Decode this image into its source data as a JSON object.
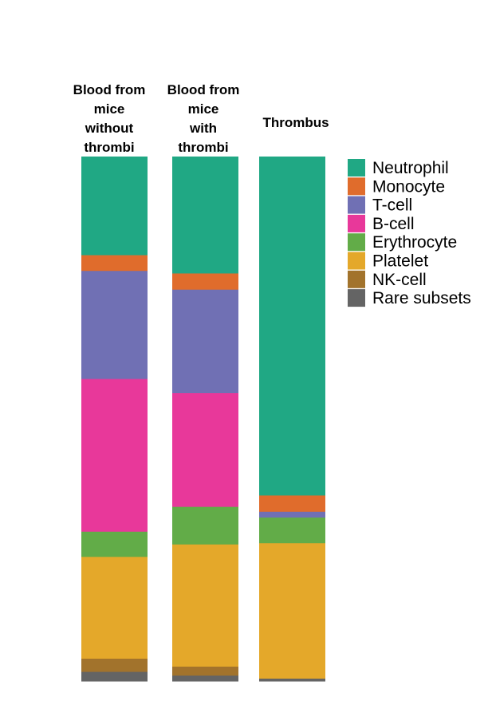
{
  "chart_data": {
    "type": "bar",
    "stacked": true,
    "orientation": "vertical",
    "normalized": true,
    "categories": [
      [
        "Blood from",
        "mice",
        "without",
        "thrombi"
      ],
      [
        "Blood from",
        "mice",
        "with",
        "thrombi"
      ],
      [
        "Thrombus"
      ]
    ],
    "series": [
      {
        "name": "Neutrophil",
        "color": "#20a884",
        "values": [
          0.188,
          0.224,
          0.646
        ]
      },
      {
        "name": "Monocyte",
        "color": "#e06c2c",
        "values": [
          0.03,
          0.031,
          0.031
        ]
      },
      {
        "name": "T-cell",
        "color": "#7070b4",
        "values": [
          0.206,
          0.198,
          0.011
        ]
      },
      {
        "name": "B-cell",
        "color": "#e8389a",
        "values": [
          0.291,
          0.218,
          0.0
        ]
      },
      {
        "name": "Erythrocyte",
        "color": "#62ac48",
        "values": [
          0.048,
          0.072,
          0.049
        ]
      },
      {
        "name": "Platelet",
        "color": "#e4a82a",
        "values": [
          0.194,
          0.234,
          0.258
        ]
      },
      {
        "name": "NK-cell",
        "color": "#a2732c",
        "values": [
          0.025,
          0.017,
          0.0
        ]
      },
      {
        "name": "Rare subsets",
        "color": "#646464",
        "values": [
          0.018,
          0.011,
          0.005
        ]
      }
    ],
    "legend_position": "right",
    "grid": false,
    "axes_visible": false
  }
}
